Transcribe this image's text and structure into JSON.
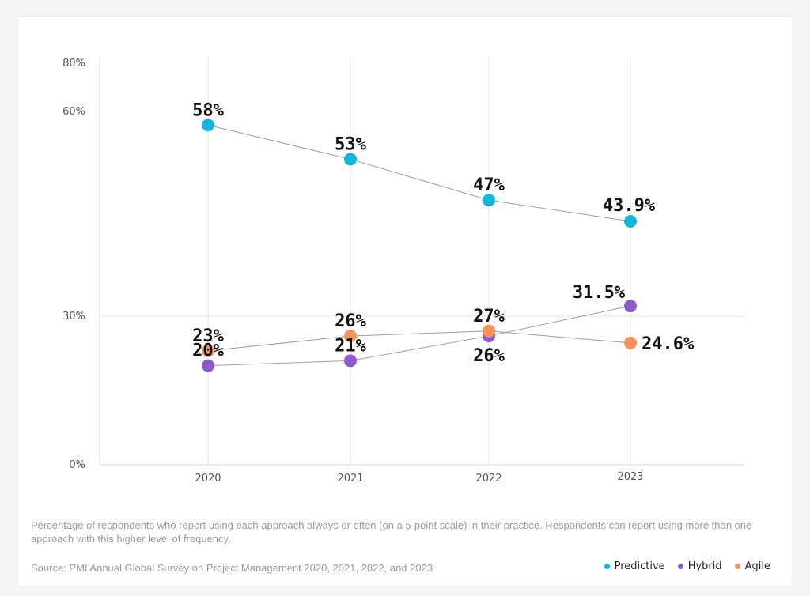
{
  "chart_data": {
    "type": "line",
    "x": [
      "2020",
      "2021",
      "2022",
      "2023"
    ],
    "y_ticks": [
      "0%",
      "30%",
      "60%",
      "80%"
    ],
    "y_tick_values": [
      0,
      30,
      60,
      80
    ],
    "series": [
      {
        "name": "Predictive",
        "color": "#12b6db",
        "values": [
          58,
          53,
          47,
          43.9
        ],
        "labels": [
          "58%",
          "53%",
          "47%",
          "43.9%"
        ]
      },
      {
        "name": "Hybrid",
        "color": "#8a5cc8",
        "values": [
          20,
          21,
          26,
          31.5
        ],
        "labels": [
          "20%",
          "21%",
          "26%",
          "31.5%"
        ]
      },
      {
        "name": "Agile",
        "color": "#f7915a",
        "values": [
          23,
          26,
          27,
          24.6
        ],
        "labels": [
          "23%",
          "26%",
          "27%",
          "24.6%"
        ]
      }
    ],
    "legend_position": "bottom-right",
    "grid": true
  },
  "caption": "Percentage of respondents who report using each approach always or often (on a 5-point scale) in their practice. Respondents can report using more than one approach with this higher level of frequency.",
  "source": "Source: PMI Annual Global Survey on Project Management 2020, 2021, 2022, and 2023"
}
